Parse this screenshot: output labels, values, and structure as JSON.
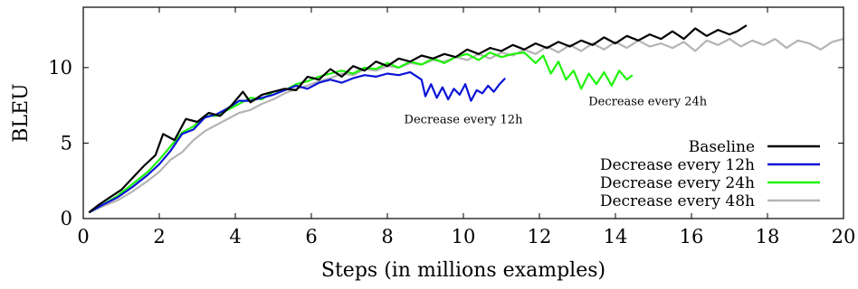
{
  "chart_data": {
    "type": "line",
    "title": "",
    "xlabel": "Steps (in millions examples)",
    "ylabel": "BLEU",
    "xlim": [
      0,
      20
    ],
    "ylim": [
      0,
      14
    ],
    "xticks": [
      0,
      2,
      4,
      6,
      8,
      10,
      12,
      14,
      16,
      18,
      20
    ],
    "yticks": [
      0,
      5,
      10
    ],
    "grid": false,
    "legend_position": "bottom-right",
    "series": [
      {
        "name": "Baseline",
        "color": "#000000",
        "x": [
          0.15,
          0.4,
          0.7,
          1.0,
          1.3,
          1.6,
          1.9,
          2.1,
          2.4,
          2.7,
          3.0,
          3.3,
          3.6,
          3.9,
          4.2,
          4.4,
          4.7,
          5.0,
          5.3,
          5.6,
          5.9,
          6.2,
          6.5,
          6.8,
          7.1,
          7.4,
          7.7,
          8.0,
          8.3,
          8.6,
          8.9,
          9.2,
          9.5,
          9.8,
          10.1,
          10.4,
          10.7,
          11.0,
          11.3,
          11.6,
          11.9,
          12.2,
          12.5,
          12.8,
          13.1,
          13.4,
          13.7,
          14.0,
          14.3,
          14.6,
          14.9,
          15.2,
          15.5,
          15.8,
          16.1,
          16.4,
          16.7,
          17.0,
          17.2,
          17.45
        ],
        "y": [
          0.4,
          0.9,
          1.4,
          1.9,
          2.7,
          3.5,
          4.2,
          5.6,
          5.2,
          6.6,
          6.4,
          7.0,
          6.8,
          7.5,
          8.4,
          7.7,
          8.2,
          8.4,
          8.6,
          8.5,
          9.4,
          9.2,
          9.9,
          9.4,
          10.1,
          9.8,
          10.4,
          10.1,
          10.6,
          10.4,
          10.8,
          10.6,
          10.9,
          10.7,
          11.2,
          10.9,
          11.3,
          11.1,
          11.5,
          11.2,
          11.6,
          11.3,
          11.7,
          11.4,
          11.8,
          11.5,
          12.0,
          11.6,
          12.1,
          11.8,
          12.2,
          11.9,
          12.4,
          11.9,
          12.6,
          12.1,
          12.5,
          12.2,
          12.4,
          12.8
        ]
      },
      {
        "name": "Decrease every 12h",
        "color": "#0a14d6",
        "x": [
          0.15,
          0.5,
          0.9,
          1.3,
          1.7,
          2.0,
          2.3,
          2.6,
          2.9,
          3.2,
          3.5,
          3.8,
          4.1,
          4.4,
          4.7,
          5.0,
          5.3,
          5.6,
          5.9,
          6.2,
          6.5,
          6.8,
          7.1,
          7.4,
          7.7,
          8.0,
          8.3,
          8.6,
          8.9,
          9.0,
          9.15,
          9.3,
          9.45,
          9.6,
          9.75,
          9.9,
          10.05,
          10.2,
          10.35,
          10.5,
          10.65,
          10.8,
          10.95,
          11.1
        ],
        "y": [
          0.4,
          0.9,
          1.4,
          2.1,
          2.9,
          3.6,
          4.5,
          5.6,
          5.9,
          6.7,
          6.9,
          7.3,
          7.8,
          7.8,
          8.0,
          8.2,
          8.5,
          8.8,
          8.6,
          9.0,
          9.2,
          9.0,
          9.3,
          9.5,
          9.4,
          9.6,
          9.5,
          9.7,
          9.2,
          8.1,
          8.9,
          8.0,
          8.7,
          7.9,
          8.6,
          8.2,
          8.9,
          7.8,
          8.5,
          8.3,
          8.8,
          8.4,
          8.9,
          9.3
        ]
      },
      {
        "name": "Decrease every 24h",
        "color": "#1ef50a",
        "x": [
          0.15,
          0.5,
          0.9,
          1.3,
          1.7,
          2.0,
          2.3,
          2.6,
          2.9,
          3.2,
          3.5,
          3.8,
          4.1,
          4.4,
          4.7,
          5.0,
          5.3,
          5.6,
          5.9,
          6.2,
          6.5,
          6.8,
          7.1,
          7.4,
          7.7,
          8.0,
          8.3,
          8.6,
          8.9,
          9.2,
          9.5,
          9.8,
          10.1,
          10.4,
          10.7,
          11.0,
          11.3,
          11.6,
          11.9,
          12.1,
          12.3,
          12.5,
          12.7,
          12.9,
          13.1,
          13.3,
          13.5,
          13.7,
          13.9,
          14.1,
          14.3,
          14.45
        ],
        "y": [
          0.4,
          0.9,
          1.5,
          2.3,
          3.1,
          3.9,
          4.8,
          5.7,
          6.1,
          6.8,
          6.8,
          7.2,
          7.6,
          8.0,
          7.9,
          8.4,
          8.5,
          8.9,
          9.1,
          9.4,
          9.6,
          9.8,
          9.6,
          10.0,
          9.9,
          10.3,
          10.0,
          10.4,
          10.2,
          10.6,
          10.3,
          10.7,
          10.9,
          10.5,
          11.0,
          10.7,
          10.9,
          11.0,
          10.3,
          10.8,
          9.6,
          10.4,
          9.2,
          9.8,
          8.6,
          9.6,
          8.9,
          9.7,
          8.8,
          9.8,
          9.2,
          9.5
        ]
      },
      {
        "name": "Decrease every 48h",
        "color": "#b4b4b4",
        "x": [
          0.15,
          0.5,
          0.9,
          1.3,
          1.7,
          2.0,
          2.3,
          2.6,
          2.9,
          3.2,
          3.5,
          3.8,
          4.1,
          4.4,
          4.7,
          5.0,
          5.3,
          5.6,
          5.9,
          6.2,
          6.5,
          6.8,
          7.1,
          7.4,
          7.7,
          8.0,
          8.3,
          8.6,
          8.9,
          9.2,
          9.5,
          9.8,
          10.1,
          10.4,
          10.7,
          11.0,
          11.3,
          11.6,
          11.9,
          12.2,
          12.5,
          12.8,
          13.1,
          13.4,
          13.7,
          14.0,
          14.3,
          14.6,
          14.9,
          15.2,
          15.5,
          15.8,
          16.1,
          16.4,
          16.7,
          17.0,
          17.3,
          17.6,
          17.9,
          18.2,
          18.5,
          18.8,
          19.1,
          19.4,
          19.7,
          20.0
        ],
        "y": [
          0.4,
          0.8,
          1.2,
          1.8,
          2.5,
          3.1,
          3.9,
          4.4,
          5.2,
          5.8,
          6.2,
          6.6,
          7.0,
          7.2,
          7.6,
          7.9,
          8.3,
          8.6,
          8.8,
          9.1,
          9.3,
          9.6,
          9.5,
          9.9,
          9.8,
          10.1,
          10.0,
          10.3,
          10.2,
          10.5,
          10.4,
          10.7,
          10.5,
          10.9,
          10.6,
          11.0,
          10.8,
          11.2,
          10.9,
          11.4,
          11.0,
          11.5,
          11.1,
          11.6,
          11.2,
          11.7,
          11.3,
          11.8,
          11.4,
          11.6,
          11.3,
          11.7,
          11.1,
          11.8,
          11.5,
          11.9,
          11.4,
          11.8,
          11.5,
          11.9,
          11.3,
          11.8,
          11.6,
          11.2,
          11.7,
          11.9
        ]
      }
    ],
    "annotations": [
      {
        "text": "Decrease every 12h",
        "x": 10.0,
        "y": 6.3
      },
      {
        "text": "Decrease every 24h",
        "x": 14.85,
        "y": 7.5
      }
    ]
  }
}
